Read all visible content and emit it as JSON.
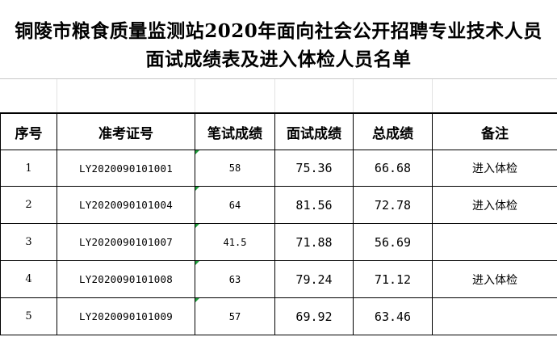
{
  "title": {
    "line1": "铜陵市粮食质量监测站2020年面向社会公开招聘专业技术人员",
    "line2": "面试成绩表及进入体检人员名单"
  },
  "table": {
    "headers": [
      "序号",
      "准考证号",
      "笔试成绩",
      "面试成绩",
      "总成绩",
      "备注"
    ],
    "rows": [
      {
        "seq": "1",
        "ticket": "LY2020090101001",
        "written": "58",
        "interview": "75.36",
        "total": "66.68",
        "remark": "进入体检"
      },
      {
        "seq": "2",
        "ticket": "LY2020090101004",
        "written": "64",
        "interview": "81.56",
        "total": "72.78",
        "remark": "进入体检"
      },
      {
        "seq": "3",
        "ticket": "LY2020090101007",
        "written": "41.5",
        "interview": "71.88",
        "total": "56.69",
        "remark": ""
      },
      {
        "seq": "4",
        "ticket": "LY2020090101008",
        "written": "63",
        "interview": "79.24",
        "total": "71.12",
        "remark": "进入体检"
      },
      {
        "seq": "5",
        "ticket": "LY2020090101009",
        "written": "57",
        "interview": "69.92",
        "total": "63.46",
        "remark": ""
      }
    ]
  },
  "colors": {
    "grid_border": "#000000",
    "faint_grid": "#e2e2e2",
    "comment_marker": "#1e9e3a"
  }
}
